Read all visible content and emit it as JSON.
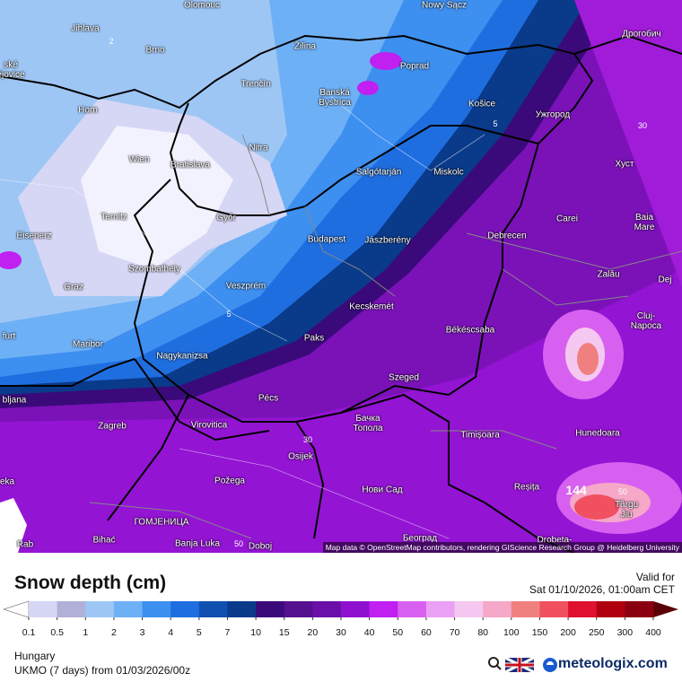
{
  "map": {
    "cities": [
      "Olomouc",
      "Nowy Sącz",
      "Jihlava",
      "Žilina",
      "Дрогобич",
      "Brno",
      "Poprad",
      "ské\nějovice",
      "Trenčín",
      "Banská\nBystrica",
      "Horn",
      "Košice",
      "Ужгород",
      "Wien",
      "Bratislava",
      "Nitra",
      "Salgótarján",
      "Miskolc",
      "Хуст",
      "Ternitz",
      "Győr",
      "Carei",
      "Baia Mare",
      "Eisenerz",
      "Budapest",
      "Jászberény",
      "Debrecen",
      "Szombathely",
      "Graz",
      "Veszprém",
      "Zalău",
      "Dej",
      "Kecskemét",
      "Cluj-Napoca",
      "furt",
      "Maribor",
      "Paks",
      "Békéscsaba",
      "Nagykanizsa",
      "Szeged",
      "bljana",
      "Pécs",
      "Zagreb",
      "Virovitica",
      "Бачка\nТопола",
      "Timișoara",
      "Hunedoara",
      "Osijek",
      "eka",
      "Požega",
      "Нови Сад",
      "Reșița",
      "Târgu\nJiu",
      "ГОМЈЕНИЦА",
      "Bihać",
      "Banja Luka",
      "Doboj",
      "Београд",
      "Drobeta-",
      "Rab"
    ],
    "contour_labels": [
      "2",
      "5",
      "5",
      "30",
      "30",
      "50",
      "50",
      "144"
    ],
    "attribution": "Map data © OpenStreetMap contributors, rendering GIScience Research Group @ Heidelberg University"
  },
  "legend": {
    "title": "Snow depth (cm)",
    "valid_label": "Valid for",
    "valid_time": "Sat 01/10/2026, 01:00am CET",
    "levels": [
      0.1,
      0.5,
      1,
      2,
      3,
      4,
      5,
      7,
      10,
      15,
      20,
      30,
      40,
      50,
      60,
      70,
      80,
      100,
      150,
      200,
      250,
      300,
      400
    ],
    "colors": [
      "#d6d6f5",
      "#b0b0d8",
      "#9ec6f5",
      "#6eb0f5",
      "#3d8ff0",
      "#1f6ee0",
      "#1050b0",
      "#0a3a8a",
      "#3a0a7a",
      "#55108f",
      "#6a10a8",
      "#9010d0",
      "#c020f0",
      "#d860f0",
      "#eaa0f5",
      "#f4c8f0",
      "#f5a8c8",
      "#f08080",
      "#f05060",
      "#e01030",
      "#b00010",
      "#8a0010"
    ],
    "under_color": "#ffffff",
    "over_color": "#5a0008",
    "region": "Hungary",
    "model": "UKMO (7 days) from 01/03/2026/00z",
    "brand": "meteologix.com"
  }
}
